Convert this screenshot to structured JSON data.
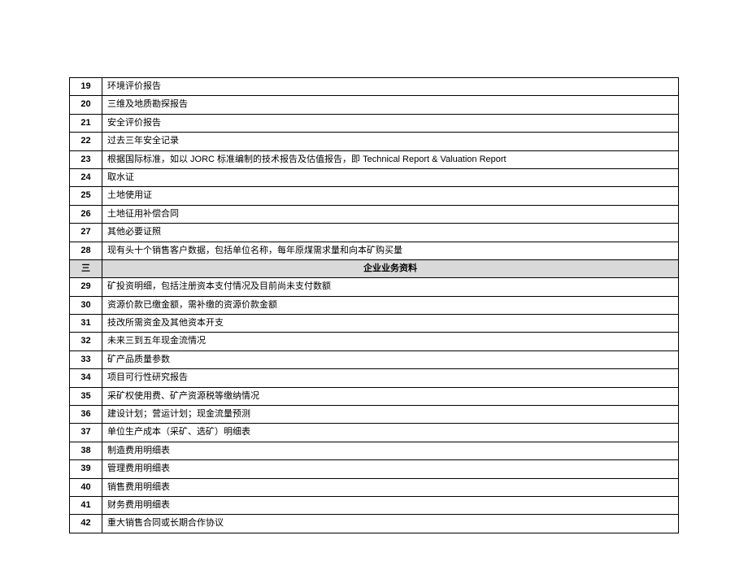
{
  "table": {
    "colors": {
      "border": "#000000",
      "section_bg": "#d9d9d9",
      "background": "#ffffff",
      "text": "#000000"
    },
    "font_size": 11,
    "num_col_width": 40,
    "rows": [
      {
        "type": "item",
        "num": "19",
        "text": "环境评价报告"
      },
      {
        "type": "item",
        "num": "20",
        "text": "三维及地质勘探报告"
      },
      {
        "type": "item",
        "num": "21",
        "text": "安全评价报告"
      },
      {
        "type": "item",
        "num": "22",
        "text": "过去三年安全记录"
      },
      {
        "type": "item",
        "num": "23",
        "text": "根据国际标准，如以 JORC 标准编制的技术报告及估值报告，即 Technical Report & Valuation Report"
      },
      {
        "type": "item",
        "num": "24",
        "text": "取水证"
      },
      {
        "type": "item",
        "num": "25",
        "text": "土地使用证"
      },
      {
        "type": "item",
        "num": "26",
        "text": "土地征用补偿合同"
      },
      {
        "type": "item",
        "num": "27",
        "text": "其他必要证照"
      },
      {
        "type": "item",
        "num": "28",
        "text": "现有头十个销售客户数据，包括单位名称，每年原煤需求量和向本矿购买量"
      },
      {
        "type": "section",
        "num": "三",
        "text": "企业业务资料"
      },
      {
        "type": "item",
        "num": "29",
        "text": "矿投资明细，包括注册资本支付情况及目前尚未支付数额"
      },
      {
        "type": "item",
        "num": "30",
        "text": "资源价款已缴金额，需补缴的资源价款金额"
      },
      {
        "type": "item",
        "num": "31",
        "text": "技改所需资金及其他资本开支"
      },
      {
        "type": "item",
        "num": "32",
        "text": "未来三到五年现金流情况"
      },
      {
        "type": "item",
        "num": "33",
        "text": "矿产品质量参数"
      },
      {
        "type": "item",
        "num": "34",
        "text": "项目可行性研究报告"
      },
      {
        "type": "item",
        "num": "35",
        "text": "采矿权使用费、矿产资源税等缴纳情况"
      },
      {
        "type": "item",
        "num": "36",
        "text": "建设计划；营运计划；现金流量预测"
      },
      {
        "type": "item",
        "num": "37",
        "text": "单位生产成本（采矿、选矿）明细表"
      },
      {
        "type": "item",
        "num": "38",
        "text": "制造费用明细表"
      },
      {
        "type": "item",
        "num": "39",
        "text": "管理费用明细表"
      },
      {
        "type": "item",
        "num": "40",
        "text": "销售费用明细表"
      },
      {
        "type": "item",
        "num": "41",
        "text": "财务费用明细表"
      },
      {
        "type": "item",
        "num": "42",
        "text": "重大销售合同或长期合作协议"
      }
    ]
  }
}
